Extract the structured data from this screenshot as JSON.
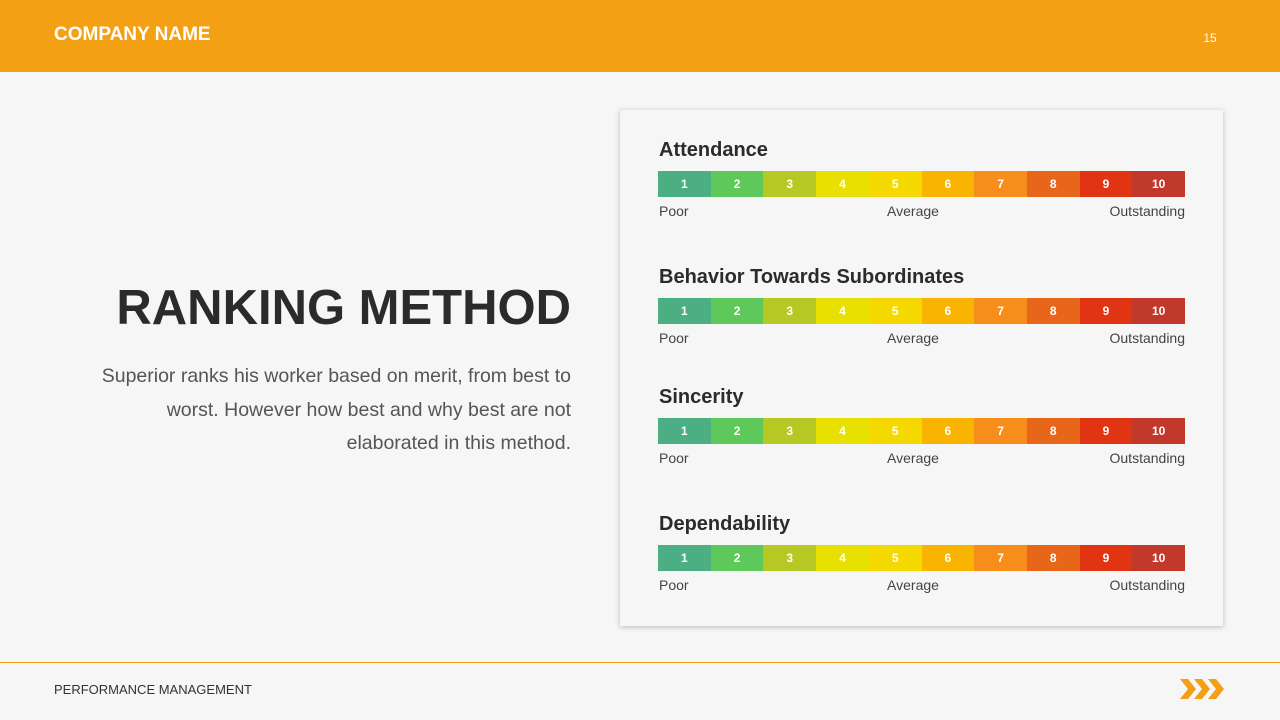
{
  "header": {
    "company": "COMPANY NAME",
    "page_number": "15"
  },
  "title": "RANKING METHOD",
  "description": "Superior ranks his worker based on merit, from best to worst. However how best and why best are not elaborated in this method.",
  "scales": [
    {
      "label": "Attendance",
      "levels": [
        1,
        2,
        3,
        4,
        5,
        6,
        7,
        8,
        9,
        10
      ],
      "anchors": [
        "Poor",
        "Average",
        "Outstanding"
      ]
    },
    {
      "label": "Behavior Towards Subordinates",
      "levels": [
        1,
        2,
        3,
        4,
        5,
        6,
        7,
        8,
        9,
        10
      ],
      "anchors": [
        "Poor",
        "Average",
        "Outstanding"
      ]
    },
    {
      "label": "Sincerity",
      "levels": [
        1,
        2,
        3,
        4,
        5,
        6,
        7,
        8,
        9,
        10
      ],
      "anchors": [
        "Poor",
        "Average",
        "Outstanding"
      ]
    },
    {
      "label": "Dependability",
      "levels": [
        1,
        2,
        3,
        4,
        5,
        6,
        7,
        8,
        9,
        10
      ],
      "anchors": [
        "Poor",
        "Average",
        "Outstanding"
      ]
    }
  ],
  "footer": {
    "text": "PERFORMANCE MANAGEMENT"
  }
}
